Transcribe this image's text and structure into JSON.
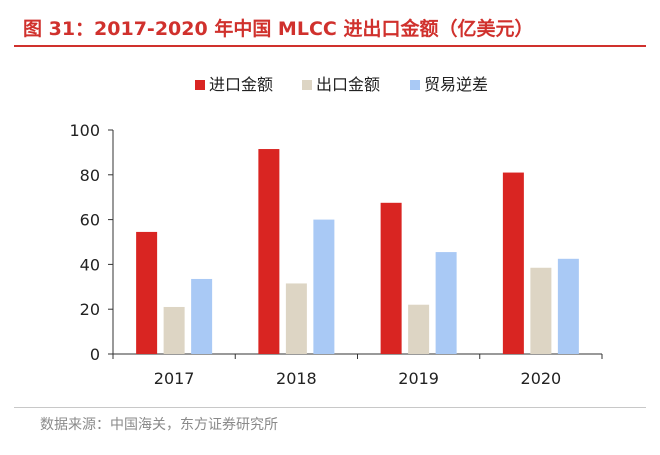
{
  "figure": {
    "title": "图 31：2017-2020 年中国 MLCC 进出口金额（亿美元）",
    "source": "数据来源：中国海关，东方证券研究所"
  },
  "colors": {
    "title": "#d0312d",
    "import": "#d92522",
    "export": "#ddd5c4",
    "deficit": "#a9c9f5",
    "axis": "#333333"
  },
  "chart_data": {
    "type": "bar",
    "categories": [
      "2017",
      "2018",
      "2019",
      "2020"
    ],
    "series": [
      {
        "name": "进口金额",
        "values": [
          54.5,
          91.5,
          67.5,
          81
        ]
      },
      {
        "name": "出口金额",
        "values": [
          21,
          31.5,
          22,
          38.5
        ]
      },
      {
        "name": "贸易逆差",
        "values": [
          33.5,
          60,
          45.5,
          42.5
        ]
      }
    ],
    "ylim": [
      0,
      100
    ],
    "yticks": [
      0,
      20,
      40,
      60,
      80,
      100
    ],
    "legend": "top",
    "grid": false,
    "title": "",
    "xlabel": "",
    "ylabel": ""
  }
}
